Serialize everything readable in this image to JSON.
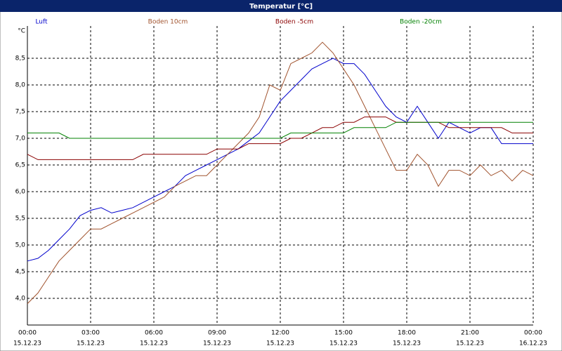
{
  "chart_data": {
    "type": "line",
    "title": "Temperatur [°C]",
    "y_unit": "°C",
    "x": [
      0,
      0.5,
      1,
      1.5,
      2,
      2.5,
      3,
      3.5,
      4,
      4.5,
      5,
      5.5,
      6,
      6.5,
      7,
      7.5,
      8,
      8.5,
      9,
      9.5,
      10,
      10.5,
      11,
      11.5,
      12,
      12.5,
      13,
      13.5,
      14,
      14.5,
      15,
      15.5,
      16,
      16.5,
      17,
      17.5,
      18,
      18.5,
      19,
      19.5,
      20,
      20.5,
      21,
      21.5,
      22,
      22.5,
      23,
      23.5,
      24
    ],
    "xlim": [
      0,
      24
    ],
    "xticks": [
      {
        "value": 0,
        "label": "00:00"
      },
      {
        "value": 3,
        "label": "03:00"
      },
      {
        "value": 6,
        "label": "06:00"
      },
      {
        "value": 9,
        "label": "09:00"
      },
      {
        "value": 12,
        "label": "12:00"
      },
      {
        "value": 15,
        "label": "15:00"
      },
      {
        "value": 18,
        "label": "18:00"
      },
      {
        "value": 21,
        "label": "21:00"
      },
      {
        "value": 24,
        "label": "00:00"
      }
    ],
    "xtick_dates": [
      "15.12.23",
      "15.12.23",
      "15.12.23",
      "15.12.23",
      "15.12.23",
      "15.12.23",
      "15.12.23",
      "15.12.23",
      "16.12.23"
    ],
    "ylim": [
      3.5,
      9.0
    ],
    "yticks": [
      {
        "value": 4,
        "label": "4,0"
      },
      {
        "value": 4.5,
        "label": "4,5"
      },
      {
        "value": 5,
        "label": "5,0"
      },
      {
        "value": 5.5,
        "label": "5,5"
      },
      {
        "value": 6,
        "label": "6,0"
      },
      {
        "value": 6.5,
        "label": "6,5"
      },
      {
        "value": 7,
        "label": "7,0"
      },
      {
        "value": 7.5,
        "label": "7,5"
      },
      {
        "value": 8,
        "label": "8,0"
      },
      {
        "value": 8.5,
        "label": "8,5"
      }
    ],
    "grid": true,
    "series": [
      {
        "name": "Luft",
        "color": "#0000cc",
        "values": [
          4.7,
          4.75,
          4.9,
          5.1,
          5.3,
          5.55,
          5.65,
          5.7,
          5.6,
          5.65,
          5.7,
          5.8,
          5.9,
          6.0,
          6.1,
          6.3,
          6.4,
          6.5,
          6.6,
          6.7,
          6.8,
          6.95,
          7.1,
          7.4,
          7.7,
          7.9,
          8.1,
          8.3,
          8.4,
          8.5,
          8.4,
          8.4,
          8.2,
          7.9,
          7.6,
          7.4,
          7.3,
          7.6,
          7.3,
          7.0,
          7.3,
          7.2,
          7.1,
          7.2,
          7.2,
          6.9,
          6.9,
          6.9,
          6.9
        ]
      },
      {
        "name": "Boden 10cm",
        "color": "#a0522d",
        "values": [
          3.9,
          4.1,
          4.4,
          4.7,
          4.9,
          5.1,
          5.3,
          5.3,
          5.4,
          5.5,
          5.6,
          5.7,
          5.8,
          5.9,
          6.1,
          6.2,
          6.3,
          6.3,
          6.5,
          6.7,
          6.9,
          7.1,
          7.4,
          8.0,
          7.9,
          8.4,
          8.5,
          8.6,
          8.8,
          8.6,
          8.3,
          8.0,
          7.6,
          7.2,
          6.8,
          6.4,
          6.4,
          6.7,
          6.5,
          6.1,
          6.4,
          6.4,
          6.3,
          6.5,
          6.3,
          6.4,
          6.2,
          6.4,
          6.3
        ]
      },
      {
        "name": "Boden -5cm",
        "color": "#8b0000",
        "values": [
          6.7,
          6.6,
          6.6,
          6.6,
          6.6,
          6.6,
          6.6,
          6.6,
          6.6,
          6.6,
          6.6,
          6.7,
          6.7,
          6.7,
          6.7,
          6.7,
          6.7,
          6.7,
          6.8,
          6.8,
          6.8,
          6.9,
          6.9,
          6.9,
          6.9,
          7.0,
          7.0,
          7.1,
          7.2,
          7.2,
          7.3,
          7.3,
          7.4,
          7.4,
          7.4,
          7.3,
          7.3,
          7.3,
          7.3,
          7.3,
          7.2,
          7.2,
          7.2,
          7.2,
          7.2,
          7.2,
          7.1,
          7.1,
          7.1
        ]
      },
      {
        "name": "Boden -20cm",
        "color": "#008000",
        "values": [
          7.1,
          7.1,
          7.1,
          7.1,
          7.0,
          7.0,
          7.0,
          7.0,
          7.0,
          7.0,
          7.0,
          7.0,
          7.0,
          7.0,
          7.0,
          7.0,
          7.0,
          7.0,
          7.0,
          7.0,
          7.0,
          7.0,
          7.0,
          7.0,
          7.0,
          7.1,
          7.1,
          7.1,
          7.1,
          7.1,
          7.1,
          7.2,
          7.2,
          7.2,
          7.2,
          7.3,
          7.3,
          7.3,
          7.3,
          7.3,
          7.3,
          7.3,
          7.3,
          7.3,
          7.3,
          7.3,
          7.3,
          7.3,
          7.3
        ]
      }
    ]
  }
}
